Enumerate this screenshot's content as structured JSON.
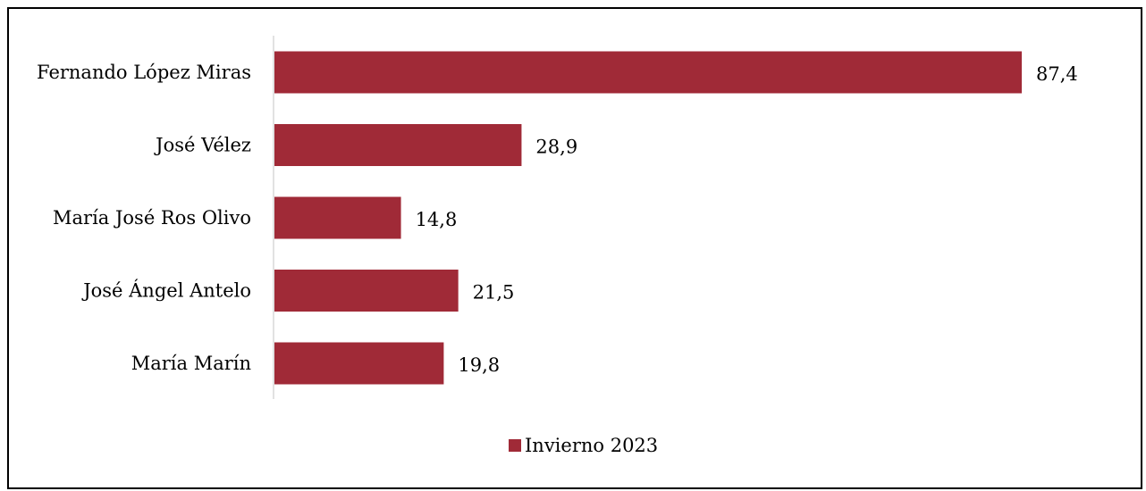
{
  "chart_data": {
    "type": "bar",
    "orientation": "horizontal",
    "categories": [
      "Fernando López Miras",
      "José Vélez",
      "María José Ros Olivo",
      "José Ángel Antelo",
      "María Marín"
    ],
    "labels": [
      "87,4",
      "28,9",
      "14,8",
      "21,5",
      "19,8"
    ],
    "series": [
      {
        "name": "Invierno 2023",
        "values": [
          87.4,
          28.9,
          14.8,
          21.5,
          19.8
        ]
      }
    ],
    "xlim": [
      0,
      90
    ],
    "grid": false,
    "legend_position": "bottom",
    "colors": {
      "bar": "#A02A37",
      "axis": "#d9d9d9",
      "text": "#000000"
    }
  }
}
